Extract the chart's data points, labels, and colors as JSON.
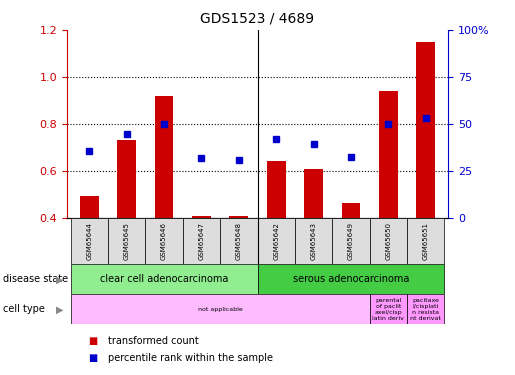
{
  "title": "GDS1523 / 4689",
  "samples": [
    "GSM65644",
    "GSM65645",
    "GSM65646",
    "GSM65647",
    "GSM65648",
    "GSM65642",
    "GSM65643",
    "GSM65649",
    "GSM65650",
    "GSM65651"
  ],
  "bar_values": [
    0.49,
    0.73,
    0.92,
    0.405,
    0.405,
    0.64,
    0.605,
    0.46,
    0.94,
    1.15
  ],
  "dot_values": [
    0.685,
    0.755,
    0.8,
    0.655,
    0.645,
    0.735,
    0.715,
    0.66,
    0.8,
    0.825
  ],
  "bar_color": "#cc0000",
  "dot_color": "#0000cc",
  "ylim_left": [
    0.4,
    1.2
  ],
  "ylim_right": [
    0,
    100
  ],
  "yticks_left": [
    0.4,
    0.6,
    0.8,
    1.0,
    1.2
  ],
  "yticks_right": [
    0,
    25,
    50,
    75,
    100
  ],
  "ytick_labels_right": [
    "0",
    "25",
    "50",
    "75",
    "100%"
  ],
  "hlines": [
    0.6,
    0.8,
    1.0
  ],
  "disease_state_groups": [
    {
      "label": "clear cell adenocarcinoma",
      "start": 0,
      "end": 5,
      "color": "#90ee90"
    },
    {
      "label": "serous adenocarcinoma",
      "start": 5,
      "end": 10,
      "color": "#44cc44"
    }
  ],
  "cell_type_groups": [
    {
      "label": "not applicable",
      "start": 0,
      "end": 8,
      "color": "#ffbbff"
    },
    {
      "label": "parental\nof paclit\naxel/cisp\nlatin deriv",
      "start": 8,
      "end": 9,
      "color": "#ff99ff"
    },
    {
      "label": "pacitaxe\nl/cisplati\nn resista\nnt derivat",
      "start": 9,
      "end": 10,
      "color": "#ff99ff"
    }
  ],
  "legend_items": [
    {
      "label": "transformed count",
      "color": "#cc0000",
      "marker": "s"
    },
    {
      "label": "percentile rank within the sample",
      "color": "#0000cc",
      "marker": "s"
    }
  ],
  "label_color": "#dddddd",
  "bar_width": 0.5
}
